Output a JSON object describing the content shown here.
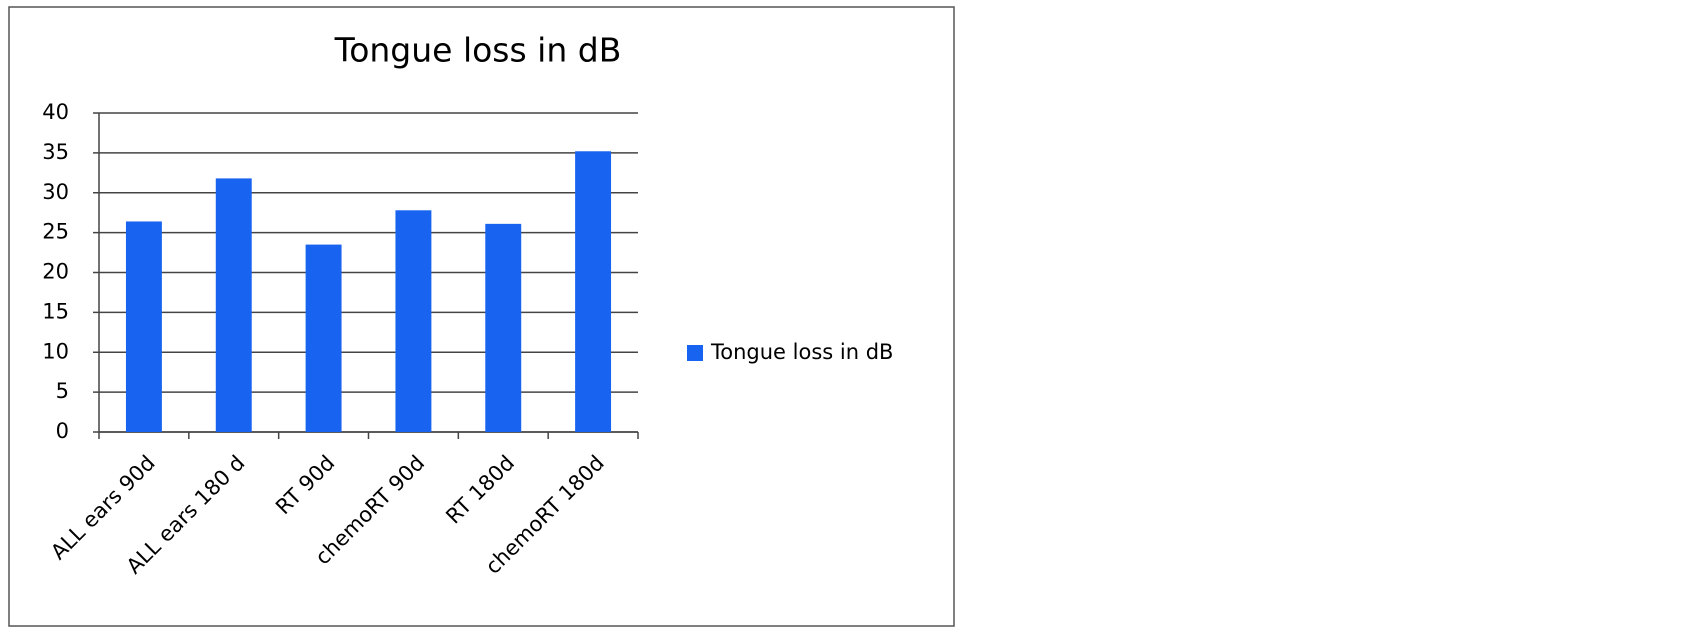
{
  "chart_data": {
    "type": "bar",
    "title": "Tongue loss in dB",
    "categories": [
      "ALL ears 90d",
      "ALL ears 180 d",
      "RT 90d",
      "chemoRT 90d",
      "RT 180d",
      "chemoRT 180d"
    ],
    "series": [
      {
        "name": "Tongue loss in dB",
        "color": "#1863ef",
        "values": [
          26.4,
          31.8,
          23.5,
          27.8,
          26.1,
          35.2
        ]
      }
    ],
    "ylim": [
      0,
      40
    ],
    "yticks": [
      0,
      5,
      10,
      15,
      20,
      25,
      30,
      35,
      40
    ],
    "grid": true,
    "legend": "right"
  }
}
